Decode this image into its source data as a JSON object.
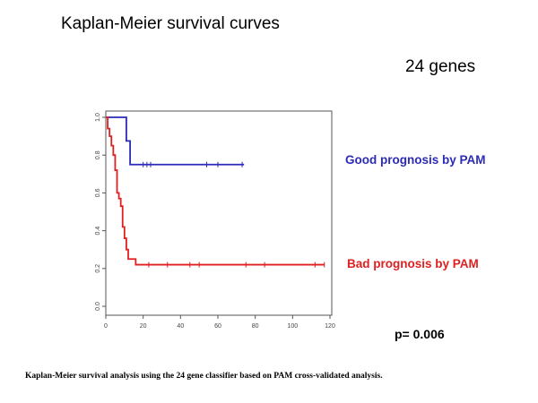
{
  "title": "Kaplan-Meier survival curves",
  "subtitle": "24 genes",
  "pvalue": "p= 0.006",
  "caption": "Kaplan-Meier survival analysis using the 24 gene classifier based on PAM cross-validated analysis.",
  "chart_data": {
    "type": "line",
    "step": true,
    "xlim": [
      0,
      120
    ],
    "ylim": [
      0,
      1
    ],
    "xticks": [
      0,
      20,
      40,
      60,
      80,
      100,
      120
    ],
    "xtick_labels": [
      "0",
      "20",
      "40",
      "60",
      "80",
      "100",
      "120"
    ],
    "yticks": [
      0,
      0.2,
      0.4,
      0.6,
      0.8,
      1.0
    ],
    "ytick_labels": [
      "0.0",
      "0.2",
      "0.4",
      "0.6",
      "0.8",
      "1.0"
    ],
    "grid": false,
    "legend_position": "right",
    "series": [
      {
        "name": "Good prognosis by PAM",
        "color": "#2b2bb8",
        "x": [
          0,
          11,
          13,
          74
        ],
        "y": [
          1.0,
          0.875,
          0.75,
          0.75
        ],
        "censored_x": [
          20,
          22,
          24,
          54,
          60,
          73
        ]
      },
      {
        "name": "Bad prognosis by PAM",
        "color": "#e02020",
        "x": [
          0,
          1,
          2,
          3,
          4,
          5,
          6,
          7,
          8,
          9,
          10,
          11,
          12,
          16,
          117
        ],
        "y": [
          1.0,
          0.94,
          0.9,
          0.85,
          0.8,
          0.72,
          0.6,
          0.57,
          0.53,
          0.42,
          0.36,
          0.3,
          0.25,
          0.22,
          0.22
        ],
        "censored_x": [
          23,
          33,
          45,
          50,
          75,
          85,
          112,
          117
        ]
      }
    ]
  }
}
